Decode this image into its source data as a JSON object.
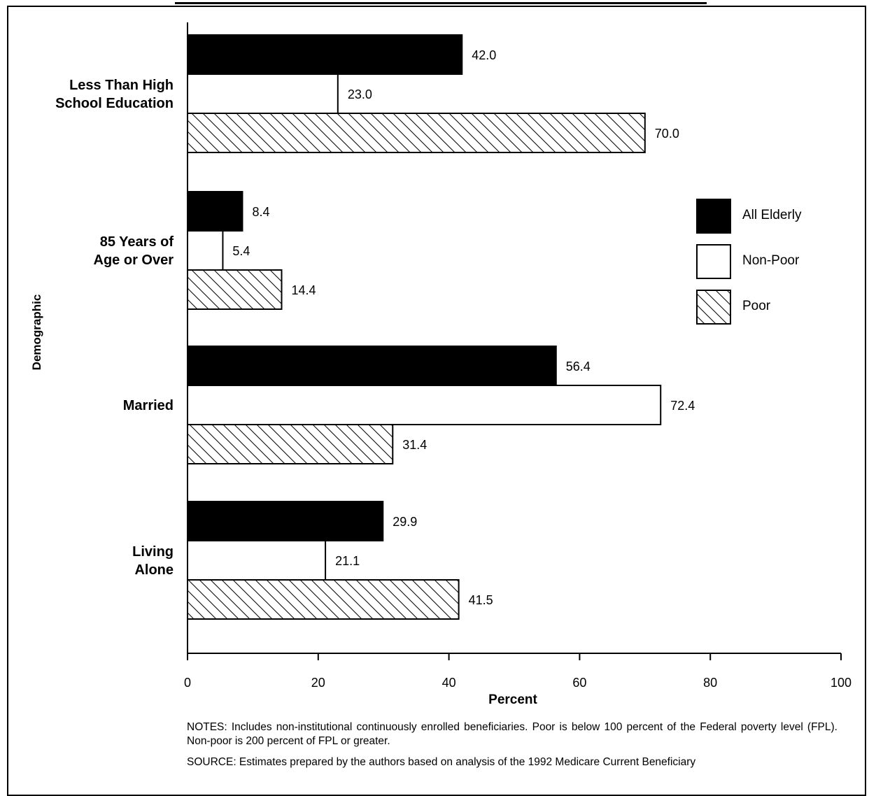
{
  "chart_data": {
    "type": "bar",
    "orientation": "horizontal",
    "title": "",
    "xlabel": "Percent",
    "ylabel": "Demographic",
    "xlim": [
      0,
      100
    ],
    "xticks": [
      0,
      20,
      40,
      60,
      80,
      100
    ],
    "grid": false,
    "legend_position": "right",
    "categories": [
      [
        "Less Than High",
        "School Education"
      ],
      [
        "85 Years of",
        "Age or Over"
      ],
      [
        "Married"
      ],
      [
        "Living",
        "Alone"
      ]
    ],
    "series": [
      {
        "name": "All Elderly",
        "style": "solid",
        "color": "#000000",
        "values": [
          42.0,
          8.4,
          56.4,
          29.9
        ]
      },
      {
        "name": "Non-Poor",
        "style": "empty",
        "color": "#ffffff",
        "values": [
          23.0,
          5.4,
          72.4,
          21.1
        ]
      },
      {
        "name": "Poor",
        "style": "hatch",
        "color": "#ffffff",
        "values": [
          70.0,
          14.4,
          31.4,
          41.5
        ]
      }
    ]
  },
  "notes": {
    "notes_text": "NOTES: Includes non-institutional continuously enrolled beneficiaries. Poor is below 100 percent of the Federal poverty level (FPL). Non-poor is 200 percent of FPL or greater.",
    "source_text": "SOURCE: Estimates prepared by the authors based on analysis of the 1992 Medicare Current Beneficiary"
  }
}
